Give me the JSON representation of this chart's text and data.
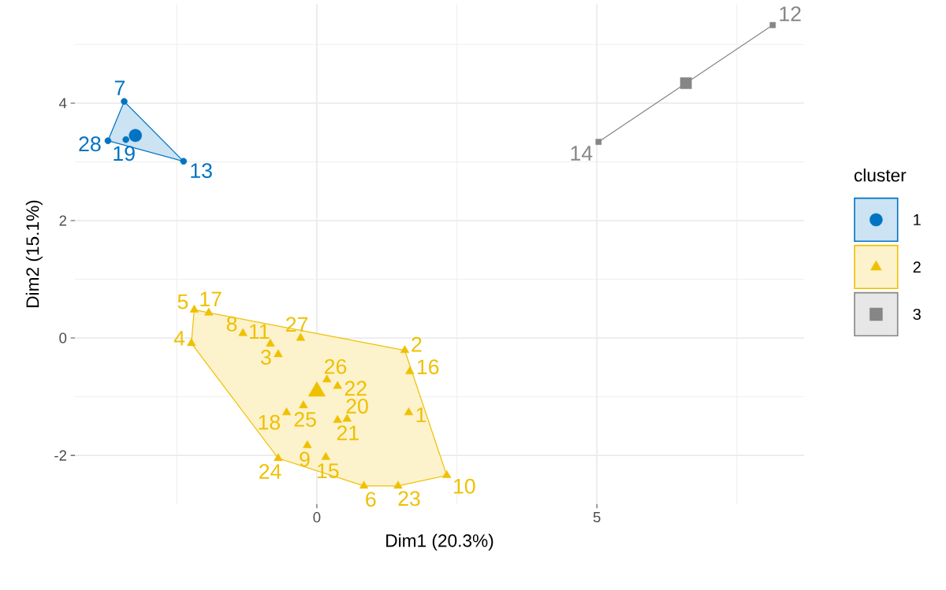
{
  "chart_data": {
    "type": "bubble",
    "xlabel": "Dim1 (20.3%)",
    "ylabel": "Dim2 (15.1%)",
    "legend_title": "cluster",
    "legend": "right",
    "grid": true,
    "xlim": [
      -4.32,
      8.7
    ],
    "ylim": [
      -2.83,
      5.69
    ],
    "xticks": [
      {
        "value": -2.5,
        "label": null
      },
      0,
      {
        "value": 2.5,
        "label": null
      },
      5,
      {
        "value": 7.5,
        "label": null
      }
    ],
    "yticks": [
      -2,
      {
        "value": -1,
        "label": null
      },
      0,
      {
        "value": 1,
        "label": null
      },
      2,
      {
        "value": 3,
        "label": null
      },
      4,
      {
        "value": 5,
        "label": null
      }
    ],
    "series": [
      {
        "name": "1",
        "color": "#0073C2",
        "marker": "circle",
        "x": [
          -3.44,
          -3.73,
          -2.38,
          -3.41,
          -3.24
        ],
        "values": [
          4.03,
          3.36,
          3.01,
          3.38,
          3.45
        ],
        "sizes": [
          0.25,
          0.25,
          0.25,
          0.25,
          1
        ]
      },
      {
        "name": "2",
        "color": "#EFC000",
        "marker": "triangle",
        "x": [
          -2.19,
          -1.93,
          -2.24,
          -1.32,
          -0.29,
          -0.83,
          -0.69,
          1.57,
          1.66,
          0.18,
          0.37,
          -0.24,
          -0.54,
          0.37,
          0.54,
          1.64,
          -0.17,
          0.16,
          -0.69,
          0.84,
          1.45,
          2.32,
          0.0
        ],
        "values": [
          0.48,
          0.43,
          -0.09,
          0.08,
          0.0,
          -0.1,
          -0.28,
          -0.21,
          -0.57,
          -0.71,
          -0.82,
          -1.15,
          -1.27,
          -1.4,
          -1.38,
          -1.27,
          -1.83,
          -2.03,
          -2.05,
          -2.52,
          -2.52,
          -2.34,
          -0.91
        ],
        "sizes": [
          0.25,
          0.25,
          0.25,
          0.25,
          0.25,
          0.25,
          0.25,
          0.25,
          0.25,
          0.25,
          0.25,
          0.25,
          0.25,
          0.25,
          0.25,
          0.25,
          0.25,
          0.25,
          0.25,
          0.25,
          0.25,
          0.25,
          1
        ]
      },
      {
        "name": "3",
        "color": "#868686",
        "marker": "square",
        "x": [
          5.03,
          8.14,
          6.59
        ],
        "values": [
          3.34,
          5.33,
          4.34
        ],
        "sizes": [
          0.25,
          0.25,
          1
        ]
      }
    ],
    "annotations": [
      {
        "text": "7",
        "x": -3.44,
        "y": 4.03
      },
      {
        "text": "28",
        "x": -3.73,
        "y": 3.36
      },
      {
        "text": "13",
        "x": -2.38,
        "y": 3.01
      },
      {
        "text": "19",
        "x": -3.41,
        "y": 3.38
      },
      {
        "text": "5",
        "x": -2.19,
        "y": 0.48
      },
      {
        "text": "17",
        "x": -1.93,
        "y": 0.43
      },
      {
        "text": "4",
        "x": -2.24,
        "y": -0.09
      },
      {
        "text": "8",
        "x": -1.32,
        "y": 0.08
      },
      {
        "text": "27",
        "x": -0.29,
        "y": 0.0
      },
      {
        "text": "11",
        "x": -0.83,
        "y": -0.1
      },
      {
        "text": "3",
        "x": -0.69,
        "y": -0.28
      },
      {
        "text": "2",
        "x": 1.57,
        "y": -0.21
      },
      {
        "text": "16",
        "x": 1.66,
        "y": -0.57
      },
      {
        "text": "26",
        "x": 0.18,
        "y": -0.71
      },
      {
        "text": "22",
        "x": 0.37,
        "y": -0.82
      },
      {
        "text": "25",
        "x": -0.24,
        "y": -1.15
      },
      {
        "text": "18",
        "x": -0.54,
        "y": -1.27
      },
      {
        "text": "21",
        "x": 0.37,
        "y": -1.4
      },
      {
        "text": "20",
        "x": 0.54,
        "y": -1.38
      },
      {
        "text": "1",
        "x": 1.64,
        "y": -1.27
      },
      {
        "text": "9",
        "x": -0.17,
        "y": -1.83
      },
      {
        "text": "15",
        "x": 0.16,
        "y": -2.03
      },
      {
        "text": "24",
        "x": -0.69,
        "y": -2.05
      },
      {
        "text": "6",
        "x": 0.84,
        "y": -2.52
      },
      {
        "text": "23",
        "x": 1.45,
        "y": -2.52
      },
      {
        "text": "10",
        "x": 2.32,
        "y": -2.34
      },
      {
        "text": "14",
        "x": 5.03,
        "y": 3.34
      },
      {
        "text": "12",
        "x": 8.14,
        "y": 5.33
      }
    ]
  }
}
